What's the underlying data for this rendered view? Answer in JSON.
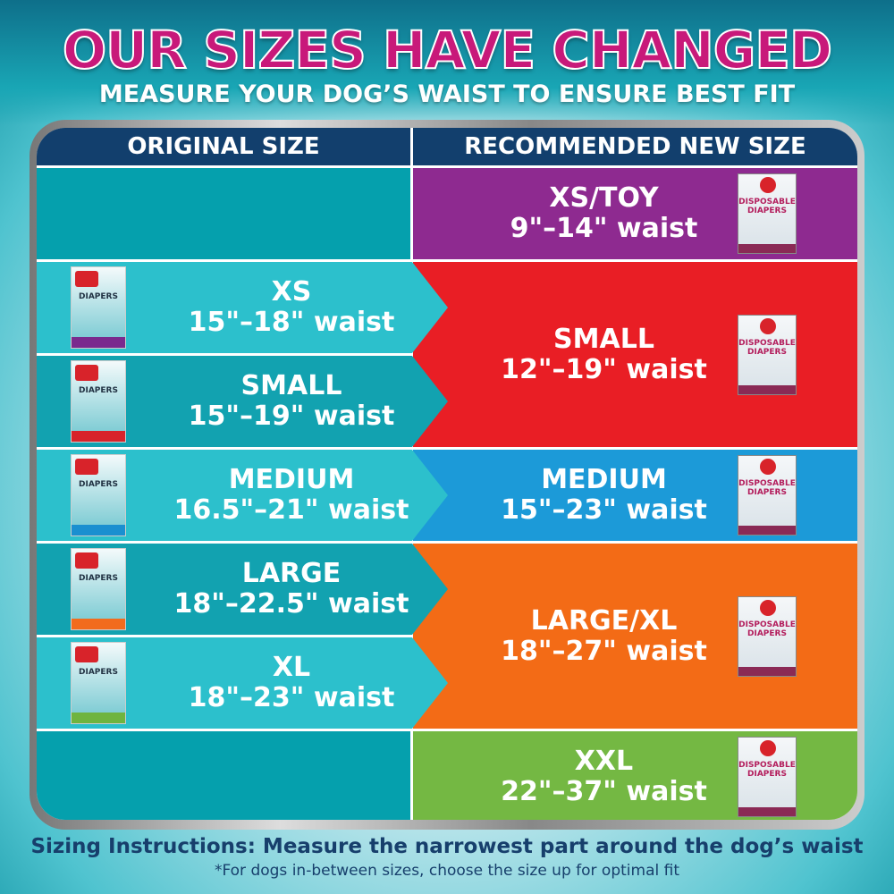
{
  "title": "OUR SIZES HAVE CHANGED",
  "subtitle": "MEASURE YOUR DOG’S WAIST TO ENSURE BEST FIT",
  "headers": {
    "original": "ORIGINAL SIZE",
    "recommended": "RECOMMENDED NEW SIZE"
  },
  "original": [
    {
      "size": "XS",
      "waist": "15\"–18\" waist",
      "pack": "DIAPERS",
      "band_color": "#7a2a8e"
    },
    {
      "size": "SMALL",
      "waist": "15\"–19\" waist",
      "pack": "DIAPERS",
      "band_color": "#d8232a"
    },
    {
      "size": "MEDIUM",
      "waist": "16.5\"–21\" waist",
      "pack": "DIAPERS",
      "band_color": "#1a8fd0"
    },
    {
      "size": "LARGE",
      "waist": "18\"–22.5\" waist",
      "pack": "DIAPERS",
      "band_color": "#f26b1d"
    },
    {
      "size": "XL",
      "waist": "18\"–23\" waist",
      "pack": "DIAPERS",
      "band_color": "#6fb43f"
    }
  ],
  "recommended": [
    {
      "size": "XS/TOY",
      "waist": "9\"–14\" waist",
      "pack": "DISPOSABLE DIAPERS",
      "color": "#8e2a90"
    },
    {
      "size": "SMALL",
      "waist": "12\"–19\" waist",
      "pack": "DISPOSABLE DIAPERS",
      "color": "#e91e25"
    },
    {
      "size": "MEDIUM",
      "waist": "15\"–23\" waist",
      "pack": "DISPOSABLE DIAPERS",
      "color": "#1c9ad8"
    },
    {
      "size": "LARGE/XL",
      "waist": "18\"–27\" waist",
      "pack": "DISPOSABLE DIAPERS",
      "color": "#f36b16"
    },
    {
      "size": "XXL",
      "waist": "22\"–37\" waist",
      "pack": "DISPOSABLE DIAPERS",
      "color": "#74b843"
    }
  ],
  "instructions": "Sizing Instructions: Measure the narrowest part around the dog’s waist",
  "note": "*For dogs in-between sizes, choose the size up for optimal fit"
}
